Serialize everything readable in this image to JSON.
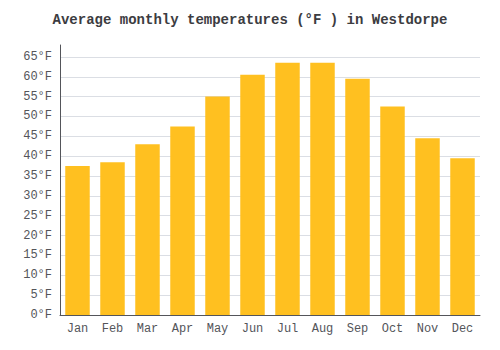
{
  "chart_data": {
    "type": "bar",
    "title": "Average monthly temperatures (°F ) in Westdorpe",
    "categories": [
      "Jan",
      "Feb",
      "Mar",
      "Apr",
      "May",
      "Jun",
      "Jul",
      "Aug",
      "Sep",
      "Oct",
      "Nov",
      "Dec"
    ],
    "values": [
      37.5,
      38.5,
      43.0,
      47.5,
      55.0,
      60.5,
      63.5,
      63.5,
      59.5,
      52.5,
      44.5,
      39.5
    ],
    "color": "#FFC020",
    "ylim": [
      0,
      68
    ],
    "yticks": [
      {
        "value": 0,
        "label": "0°F"
      },
      {
        "value": 5,
        "label": "5°F"
      },
      {
        "value": 10,
        "label": "10°F"
      },
      {
        "value": 15,
        "label": "15°F"
      },
      {
        "value": 20,
        "label": "20°F"
      },
      {
        "value": 25,
        "label": "25°F"
      },
      {
        "value": 30,
        "label": "30°F"
      },
      {
        "value": 35,
        "label": "35°F"
      },
      {
        "value": 40,
        "label": "40°F"
      },
      {
        "value": 45,
        "label": "45°F"
      },
      {
        "value": 50,
        "label": "50°F"
      },
      {
        "value": 55,
        "label": "55°F"
      },
      {
        "value": 60,
        "label": "60°F"
      },
      {
        "value": 65,
        "label": "65°F"
      }
    ],
    "grid": true
  }
}
